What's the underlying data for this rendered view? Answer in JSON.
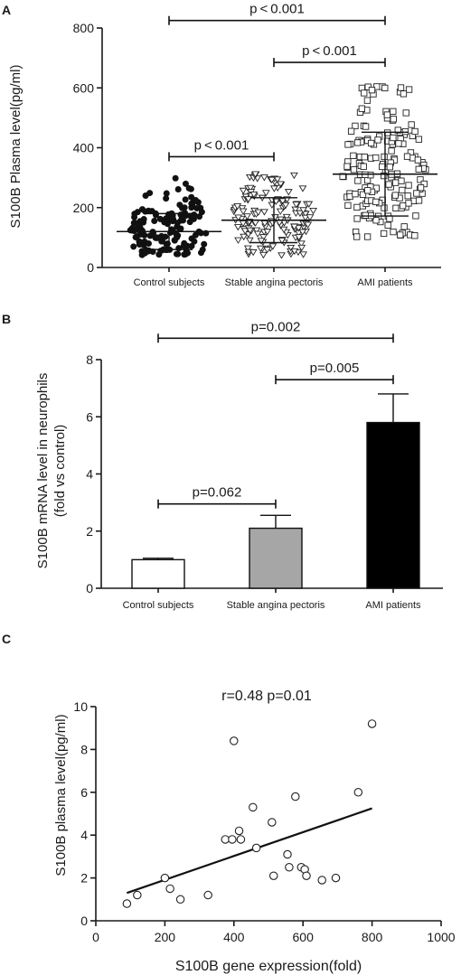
{
  "chart_data": [
    {
      "panel": "A",
      "type": "scatter",
      "ylabel": "S100B Plasma level(pg/ml)",
      "xlabel": "",
      "ylim": [
        0,
        800
      ],
      "yticks": [
        0,
        200,
        400,
        600,
        800
      ],
      "categories": [
        "Control subjects",
        "Stable angina pectoris",
        "AMI patients"
      ],
      "groups": [
        {
          "category": "Control subjects",
          "marker": "filled-circle",
          "mean": 120,
          "sd": 60,
          "min": 40,
          "max": 300,
          "n": 150
        },
        {
          "category": "Stable angina pectoris",
          "marker": "open-triangle",
          "mean": 158,
          "sd": 75,
          "min": 35,
          "max": 315,
          "n": 150
        },
        {
          "category": "AMI patients",
          "marker": "open-square",
          "mean": 312,
          "sd": 140,
          "min": 100,
          "max": 610,
          "n": 170
        }
      ],
      "comparisons": [
        {
          "from": "Control subjects",
          "to": "AMI patients",
          "y": 825,
          "label": "p < 0.001"
        },
        {
          "from": "Stable angina pectoris",
          "to": "AMI patients",
          "y": 685,
          "label": "p < 0.001"
        },
        {
          "from": "Control subjects",
          "to": "Stable angina pectoris",
          "y": 370,
          "label": "p < 0.001"
        }
      ]
    },
    {
      "panel": "B",
      "type": "bar",
      "ylabel": "S100B mRNA level in neurophils",
      "ylabel2": "(fold vs control)",
      "xlabel": "",
      "ylim": [
        0,
        8
      ],
      "yticks": [
        0,
        2,
        4,
        6,
        8
      ],
      "categories": [
        "Control subjects",
        "Stable angina pectoris",
        "AMI patients"
      ],
      "values": [
        1.0,
        2.1,
        5.8
      ],
      "errors": [
        0.05,
        0.45,
        1.0
      ],
      "colors": [
        "#ffffff",
        "#a6a6a6",
        "#000000"
      ],
      "comparisons": [
        {
          "from": "Control subjects",
          "to": "AMI patients",
          "y": 8.75,
          "label": "p=0.002"
        },
        {
          "from": "Stable angina pectoris",
          "to": "AMI patients",
          "y": 7.3,
          "label": "p=0.005"
        },
        {
          "from": "Control subjects",
          "to": "Stable angina pectoris",
          "y": 2.95,
          "label": "p=0.062"
        }
      ]
    },
    {
      "panel": "C",
      "type": "scatter",
      "annotation": "r=0.48 p=0.01",
      "xlabel": "S100B gene expression(fold)",
      "ylabel": "S100B plasma level(pg/ml)",
      "xlim": [
        0,
        1000
      ],
      "ylim": [
        0,
        10
      ],
      "xticks": [
        0,
        200,
        400,
        600,
        800,
        1000
      ],
      "yticks": [
        0,
        2,
        4,
        6,
        8,
        10
      ],
      "points": [
        {
          "x": 90,
          "y": 0.8
        },
        {
          "x": 120,
          "y": 1.2
        },
        {
          "x": 200,
          "y": 2.0
        },
        {
          "x": 215,
          "y": 1.5
        },
        {
          "x": 245,
          "y": 1.0
        },
        {
          "x": 325,
          "y": 1.2
        },
        {
          "x": 375,
          "y": 3.8
        },
        {
          "x": 395,
          "y": 3.8
        },
        {
          "x": 400,
          "y": 8.4
        },
        {
          "x": 415,
          "y": 4.2
        },
        {
          "x": 420,
          "y": 3.8
        },
        {
          "x": 455,
          "y": 5.3
        },
        {
          "x": 465,
          "y": 3.4
        },
        {
          "x": 510,
          "y": 4.6
        },
        {
          "x": 515,
          "y": 2.1
        },
        {
          "x": 555,
          "y": 3.1
        },
        {
          "x": 560,
          "y": 2.5
        },
        {
          "x": 578,
          "y": 5.8
        },
        {
          "x": 595,
          "y": 2.5
        },
        {
          "x": 605,
          "y": 2.4
        },
        {
          "x": 610,
          "y": 2.1
        },
        {
          "x": 655,
          "y": 1.9
        },
        {
          "x": 695,
          "y": 2.0
        },
        {
          "x": 760,
          "y": 6.0
        },
        {
          "x": 800,
          "y": 9.2
        }
      ],
      "fit_line": {
        "x1": 90,
        "y1": 1.3,
        "x2": 800,
        "y2": 5.25
      }
    }
  ]
}
